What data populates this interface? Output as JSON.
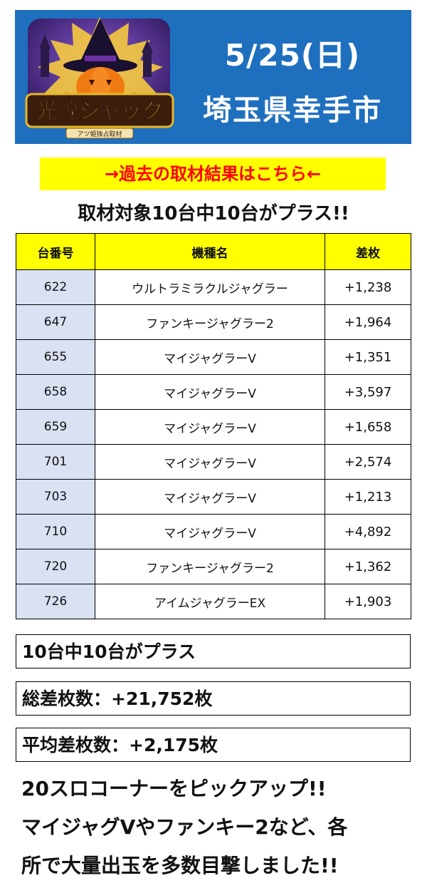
{
  "header": {
    "date": "5/25(日)",
    "place": "埼玉県幸手市",
    "logo_text": "光線ジャック",
    "logo_subtext": "アツ姫独占取材",
    "bg_color": "#1f6fbf"
  },
  "past_link": "→過去の取材結果はこちら←",
  "headline": "取材対象10台中10台がプラス!!",
  "table": {
    "headers": [
      "台番号",
      "機種名",
      "差枚"
    ],
    "rows": [
      {
        "num": "622",
        "name": "ウルトラミラクルジャグラー",
        "diff": "+1,238"
      },
      {
        "num": "647",
        "name": "ファンキージャグラー2",
        "diff": "+1,964"
      },
      {
        "num": "655",
        "name": "マイジャグラーV",
        "diff": "+1,351"
      },
      {
        "num": "658",
        "name": "マイジャグラーV",
        "diff": "+3,597"
      },
      {
        "num": "659",
        "name": "マイジャグラーV",
        "diff": "+1,658"
      },
      {
        "num": "701",
        "name": "マイジャグラーV",
        "diff": "+2,574"
      },
      {
        "num": "703",
        "name": "マイジャグラーV",
        "diff": "+1,213"
      },
      {
        "num": "710",
        "name": "マイジャグラーV",
        "diff": "+4,892"
      },
      {
        "num": "720",
        "name": "ファンキージャグラー2",
        "diff": "+1,362"
      },
      {
        "num": "726",
        "name": "アイムジャグラーEX",
        "diff": "+1,903"
      }
    ]
  },
  "summary": {
    "plus_count": "10台中10台がプラス",
    "total": "総差枚数：+21,752枚",
    "average": "平均差枚数：+2,175枚"
  },
  "comment": {
    "line1": "20スロコーナーをピックアップ!!",
    "line2": "マイジャグVやファンキー2など、各",
    "line3": "所で大量出玉を多数目撃しました!!"
  }
}
